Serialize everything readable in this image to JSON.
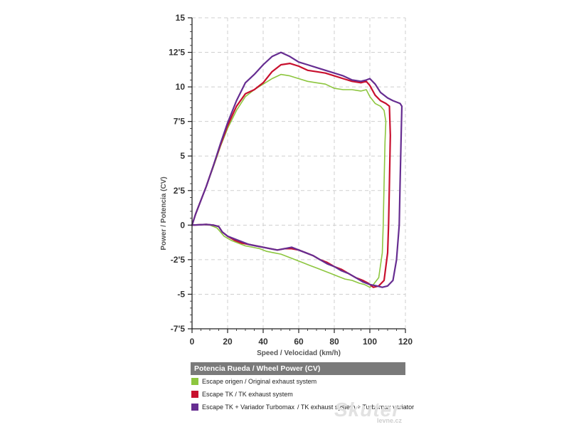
{
  "chart_data": {
    "type": "line",
    "xlabel": "Speed / Velocidad (km/h)",
    "ylabel": "Power / Potencia (CV)",
    "xlim": [
      0,
      120
    ],
    "ylim": [
      -7.5,
      15
    ],
    "x_ticks": [
      0,
      20,
      40,
      60,
      80,
      100,
      120
    ],
    "x_tick_labels": [
      "0",
      "20",
      "40",
      "60",
      "80",
      "100",
      "120"
    ],
    "y_ticks": [
      15,
      12.5,
      10,
      7.5,
      5,
      2.5,
      0,
      -2.5,
      -5,
      -7.5
    ],
    "y_tick_labels": [
      "15",
      "12'5",
      "10",
      "7'5",
      "5",
      "2'5",
      "0",
      "-2'5",
      "-5",
      "-7'5"
    ],
    "grid": "dashed",
    "legend": {
      "title": "Potencia Rueda / Wheel Power (CV)",
      "placement": "bottom"
    },
    "series": [
      {
        "name": "Escape origen / Original exhaust system",
        "color": "#8dc63f",
        "x": [
          0,
          2,
          5,
          8,
          12,
          16,
          20,
          25,
          30,
          35,
          40,
          45,
          50,
          55,
          60,
          65,
          70,
          75,
          80,
          85,
          90,
          95,
          98,
          100,
          103,
          106,
          108,
          109,
          108.5,
          108,
          107.5,
          107,
          105,
          102,
          100,
          97,
          94,
          90,
          86,
          82,
          78,
          74,
          70,
          66,
          62,
          58,
          54,
          50,
          46,
          42,
          38,
          34,
          30,
          26,
          22,
          18,
          16,
          14,
          10,
          5,
          0
        ],
        "y": [
          0,
          0.8,
          1.8,
          2.8,
          4.2,
          5.7,
          7,
          8.3,
          9.3,
          9.8,
          10.2,
          10.6,
          10.9,
          10.8,
          10.6,
          10.4,
          10.3,
          10.2,
          9.9,
          9.8,
          9.8,
          9.7,
          9.8,
          9.3,
          8.8,
          8.6,
          8.3,
          7.5,
          6,
          3,
          0,
          -2,
          -3.8,
          -4.3,
          -4.5,
          -4.3,
          -4.2,
          -4,
          -3.9,
          -3.7,
          -3.5,
          -3.3,
          -3.1,
          -2.9,
          -2.7,
          -2.5,
          -2.3,
          -2.1,
          -2,
          -1.9,
          -1.7,
          -1.6,
          -1.5,
          -1.3,
          -1.1,
          -0.8,
          -0.5,
          -0.2,
          0,
          0.05,
          0
        ]
      },
      {
        "name": "Escape TK  / TK exhaust  system",
        "color": "#c8102e",
        "x": [
          0,
          2,
          5,
          8,
          12,
          16,
          20,
          25,
          30,
          35,
          40,
          45,
          50,
          55,
          60,
          65,
          70,
          75,
          80,
          85,
          90,
          95,
          98,
          100,
          103,
          106,
          109,
          111,
          111.5,
          111,
          110.5,
          110,
          108,
          105,
          102,
          99,
          96,
          92,
          88,
          84,
          80,
          76,
          72,
          68,
          64,
          60,
          56,
          52,
          48,
          44,
          40,
          36,
          32,
          28,
          24,
          20,
          17,
          15,
          12,
          8,
          4,
          0
        ],
        "y": [
          0,
          0.8,
          1.8,
          2.8,
          4.3,
          5.8,
          7.2,
          8.6,
          9.5,
          9.8,
          10.3,
          11.1,
          11.6,
          11.7,
          11.5,
          11.2,
          11.1,
          11,
          10.8,
          10.6,
          10.4,
          10.3,
          10.4,
          10.1,
          9.4,
          9,
          8.8,
          8.6,
          6.5,
          3,
          0,
          -2,
          -4,
          -4.4,
          -4.5,
          -4.2,
          -4,
          -3.8,
          -3.5,
          -3.2,
          -3,
          -2.7,
          -2.5,
          -2.2,
          -2,
          -1.8,
          -1.7,
          -1.7,
          -1.8,
          -1.7,
          -1.6,
          -1.5,
          -1.4,
          -1.3,
          -1.1,
          -0.8,
          -0.5,
          -0.1,
          0,
          0.05,
          0.02,
          0
        ]
      },
      {
        "name": "Escape TK + Variador Turbomax",
        "subname": "/ TK exhaust  system + Turbomax variator",
        "color": "#662d91",
        "x": [
          0,
          2,
          5,
          8,
          12,
          16,
          20,
          25,
          30,
          35,
          40,
          45,
          50,
          55,
          60,
          65,
          70,
          75,
          80,
          85,
          90,
          95,
          98,
          100,
          103,
          106,
          110,
          113,
          117,
          118,
          117.5,
          117,
          116.5,
          115,
          113,
          110,
          107,
          104,
          100,
          96,
          92,
          88,
          84,
          80,
          76,
          72,
          68,
          64,
          60,
          56,
          52,
          48,
          44,
          40,
          36,
          32,
          28,
          24,
          20,
          17,
          15,
          12,
          8,
          4,
          0
        ],
        "y": [
          0,
          0.8,
          1.8,
          2.8,
          4.3,
          5.9,
          7.4,
          9,
          10.3,
          10.9,
          11.6,
          12.2,
          12.5,
          12.2,
          11.8,
          11.6,
          11.4,
          11.2,
          11,
          10.8,
          10.5,
          10.4,
          10.5,
          10.6,
          10.2,
          9.6,
          9.2,
          9,
          8.8,
          8.6,
          6,
          3,
          0,
          -2.5,
          -4,
          -4.4,
          -4.5,
          -4.4,
          -4.3,
          -4.1,
          -3.8,
          -3.5,
          -3.3,
          -3,
          -2.8,
          -2.5,
          -2.2,
          -2,
          -1.8,
          -1.6,
          -1.7,
          -1.8,
          -1.7,
          -1.6,
          -1.5,
          -1.4,
          -1.2,
          -1,
          -0.8,
          -0.5,
          -0.1,
          0,
          0.05,
          0.02,
          0
        ]
      }
    ]
  },
  "watermark": {
    "brand": "Skuter",
    "domain": "levne.cz"
  }
}
